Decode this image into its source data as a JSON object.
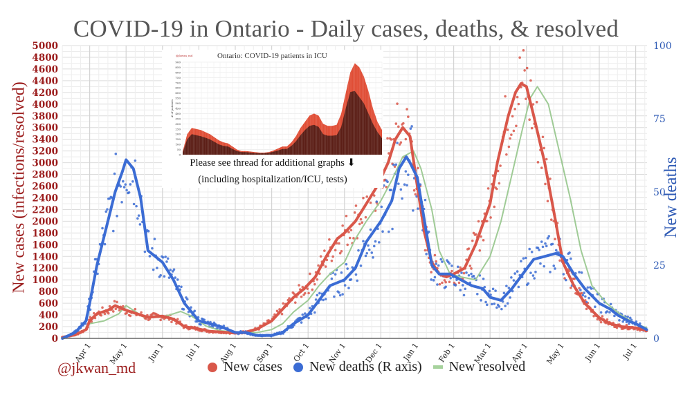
{
  "chart_data": {
    "type": "line",
    "title": "COVID-19 in Ontario - Daily cases, deaths, & resolved",
    "xlabel": "",
    "ylabel": "New cases (infections/resolved)",
    "y2label": "New deaths",
    "ylim": [
      0,
      5000
    ],
    "y2lim": [
      0,
      100
    ],
    "yticks": [
      0,
      200,
      400,
      600,
      800,
      1000,
      1200,
      1400,
      1600,
      1800,
      2000,
      2200,
      2400,
      2600,
      2800,
      3000,
      3200,
      3400,
      3600,
      3800,
      4000,
      4200,
      4400,
      4600,
      4800,
      5000
    ],
    "y2ticks": [
      0,
      25,
      50,
      75,
      100
    ],
    "xtick_labels": [
      "Apr 1",
      "May 1",
      "Jun 1",
      "Jul 1",
      "Aug 1",
      "Sep 1",
      "Oct 1",
      "Nov 1",
      "Dec 1",
      "Jan 1",
      "Feb 1",
      "Mar 1",
      "Apr 1",
      "May 1",
      "Jun 1",
      "Jul 1"
    ],
    "x_unit": "months since 2020-03-01",
    "xlim": [
      0.25,
      16.3
    ],
    "grid": true,
    "legend_position": "bottom",
    "credit": "@jkwan_md",
    "series": [
      {
        "name": "New cases",
        "axis": "left",
        "color": "#d9574a",
        "x": [
          0.25,
          0.6,
          0.9,
          1.0,
          1.2,
          1.5,
          1.7,
          2.0,
          2.3,
          2.6,
          3.0,
          3.3,
          3.6,
          4.0,
          4.3,
          4.6,
          5.0,
          5.3,
          5.6,
          6.0,
          6.3,
          6.6,
          6.9,
          7.2,
          7.5,
          7.8,
          8.0,
          8.3,
          8.6,
          8.9,
          9.2,
          9.4,
          9.6,
          9.8,
          10.0,
          10.2,
          10.4,
          10.6,
          10.8,
          11.0,
          11.3,
          11.6,
          12.0,
          12.2,
          12.5,
          12.7,
          12.85,
          13.0,
          13.2,
          13.5,
          13.8,
          14.0,
          14.3,
          14.6,
          15.0,
          15.3,
          15.6,
          16.0,
          16.3
        ],
        "values": [
          20,
          60,
          150,
          300,
          420,
          480,
          560,
          480,
          420,
          360,
          380,
          330,
          200,
          160,
          120,
          110,
          90,
          110,
          160,
          300,
          500,
          700,
          850,
          1050,
          1400,
          1700,
          1800,
          2000,
          2300,
          2600,
          3000,
          3400,
          3600,
          3450,
          2600,
          1800,
          1300,
          1100,
          1050,
          1100,
          1200,
          1600,
          2300,
          3000,
          3800,
          4200,
          4350,
          4300,
          3800,
          3000,
          2000,
          1300,
          900,
          600,
          350,
          250,
          200,
          180,
          130
        ]
      },
      {
        "name": "New deaths (R axis)",
        "axis": "right",
        "color": "#3b6cd4",
        "x": [
          0.25,
          0.6,
          0.9,
          1.0,
          1.2,
          1.5,
          1.7,
          1.9,
          2.0,
          2.2,
          2.4,
          2.6,
          2.8,
          3.0,
          3.3,
          3.6,
          4.0,
          4.3,
          4.6,
          5.0,
          5.3,
          5.6,
          6.0,
          6.3,
          6.6,
          7.0,
          7.3,
          7.6,
          8.0,
          8.3,
          8.6,
          9.0,
          9.3,
          9.5,
          9.7,
          9.8,
          10.0,
          10.2,
          10.4,
          10.6,
          10.9,
          11.2,
          11.5,
          11.8,
          12.0,
          12.3,
          12.6,
          12.9,
          13.2,
          13.5,
          13.8,
          14.0,
          14.3,
          14.6,
          15.0,
          15.3,
          15.5,
          15.8,
          16.0,
          16.3
        ],
        "values": [
          0,
          2,
          6,
          12,
          25,
          40,
          50,
          57,
          61,
          58,
          48,
          30,
          28,
          26,
          20,
          12,
          6,
          5,
          4,
          2,
          2,
          1,
          1,
          2,
          5,
          8,
          13,
          18,
          20,
          24,
          33,
          40,
          47,
          58,
          62,
          60,
          55,
          40,
          25,
          22,
          22,
          20,
          18,
          17,
          14,
          13,
          17,
          22,
          27,
          28,
          29,
          28,
          22,
          17,
          12,
          10,
          8,
          6,
          5,
          3
        ]
      },
      {
        "name": "New resolved",
        "axis": "left",
        "color": "#9fcb96",
        "x": [
          1.0,
          1.4,
          1.8,
          2.0,
          2.2,
          2.5,
          2.9,
          3.2,
          3.5,
          3.8,
          4.2,
          4.6,
          5.0,
          5.3,
          5.6,
          6.0,
          6.3,
          6.6,
          7.0,
          7.3,
          7.6,
          8.0,
          8.3,
          8.6,
          9.0,
          9.3,
          9.6,
          9.9,
          10.1,
          10.4,
          10.6,
          10.9,
          11.2,
          11.6,
          12.0,
          12.3,
          12.6,
          12.9,
          13.1,
          13.3,
          13.6,
          13.9,
          14.2,
          14.5,
          14.8,
          15.2,
          15.6,
          16.0,
          16.3
        ],
        "values": [
          250,
          300,
          420,
          560,
          480,
          360,
          360,
          400,
          460,
          380,
          210,
          130,
          110,
          100,
          100,
          150,
          250,
          450,
          650,
          900,
          1100,
          1300,
          1700,
          2000,
          2350,
          2700,
          3100,
          3200,
          2900,
          2200,
          1500,
          1100,
          1050,
          1000,
          1400,
          2000,
          2800,
          3600,
          4100,
          4300,
          4000,
          3200,
          2400,
          1500,
          900,
          600,
          400,
          250,
          180
        ]
      }
    ]
  },
  "inset": {
    "title": "Ontario: COVID-19 patients in ICU",
    "credit": "@jkwan_md",
    "ylabel": "# of patients",
    "ylim": [
      0,
      900
    ],
    "yticks": [
      0,
      50,
      100,
      150,
      200,
      250,
      300,
      350,
      400,
      450,
      500,
      550,
      600,
      650,
      700,
      750,
      800,
      850,
      900
    ],
    "total": [
      30,
      200,
      260,
      250,
      240,
      220,
      200,
      170,
      140,
      120,
      110,
      80,
      50,
      35,
      35,
      30,
      25,
      20,
      20,
      25,
      40,
      60,
      80,
      80,
      120,
      180,
      260,
      320,
      380,
      400,
      380,
      300,
      280,
      280,
      290,
      400,
      600,
      800,
      890,
      850,
      760,
      620,
      450,
      320,
      240
    ],
    "lower": [
      20,
      150,
      200,
      190,
      180,
      165,
      150,
      125,
      100,
      85,
      80,
      55,
      35,
      25,
      25,
      20,
      16,
      14,
      14,
      18,
      28,
      40,
      55,
      55,
      85,
      130,
      190,
      240,
      280,
      290,
      270,
      200,
      185,
      185,
      190,
      270,
      450,
      610,
      620,
      560,
      500,
      400,
      300,
      220,
      160
    ],
    "note_line1": "Please see thread for additional graphs",
    "note_arrow": "⬇",
    "note_line2": "(including hospitalization/ICU, tests)"
  },
  "legend": [
    {
      "label": "New cases",
      "color": "#d9574a",
      "marker": "dot"
    },
    {
      "label": "New deaths (R axis)",
      "color": "#3b6cd4",
      "marker": "dot"
    },
    {
      "label": "New resolved",
      "color": "#a6d29c",
      "marker": "dash"
    }
  ]
}
